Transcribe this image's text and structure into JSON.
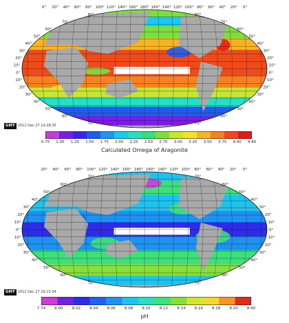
{
  "colors": {
    "land": "#a9a9a9",
    "grid": "#1a1a1a",
    "equator_band": "#ffffff",
    "ice_outline": "#e05a8c"
  },
  "panels": [
    {
      "id": "omega",
      "timestamp": "2012 Dec 27 14:28:35",
      "gmt": "GMT",
      "colorbar_label": "Calculated  Omega of Aragonite",
      "ticks": [
        "0.75",
        "1.00",
        "1.25",
        "1.50",
        "1.75",
        "2.00",
        "2.25",
        "2.50",
        "2.75",
        "3.00",
        "3.25",
        "3.50",
        "3.75",
        "4.00",
        "4.40"
      ],
      "palette": [
        "#c93cd9",
        "#7a1fe0",
        "#3b25e8",
        "#1f5cf2",
        "#1f95f5",
        "#18c9f0",
        "#26e0c4",
        "#34e07a",
        "#7be13a",
        "#c8e62c",
        "#f2e229",
        "#f7b525",
        "#f7801f",
        "#f04a1a",
        "#e01d17"
      ],
      "lon_labels": [
        "0°",
        "20°",
        "40°",
        "60°",
        "80°",
        "100°",
        "120°",
        "140°",
        "160°",
        "180°",
        "160°",
        "140°",
        "120°",
        "100°",
        "80°",
        "60°",
        "40°",
        "20°",
        "0°"
      ],
      "lat_labels": [
        "80°",
        "70°",
        "60°",
        "50°",
        "40°",
        "30°",
        "20°",
        "10°",
        "0°",
        "10°",
        "20°",
        "30°",
        "40°",
        "50°",
        "60°",
        "70°"
      ]
    },
    {
      "id": "ph",
      "timestamp": "2012 Dec 27 16:13:34",
      "gmt": "GMT",
      "colorbar_label": "pH",
      "ticks": [
        "7.74",
        "8.00",
        "8.02",
        "8.04",
        "8.06",
        "8.08",
        "8.10",
        "8.12",
        "8.14",
        "8.16",
        "8.18",
        "8.20",
        "8.40"
      ],
      "palette": [
        "#d23ad8",
        "#6f22e0",
        "#2e2ce8",
        "#2060f2",
        "#1d92f3",
        "#1bc3ee",
        "#2adfbf",
        "#3ee07c",
        "#86e03a",
        "#cfe62c",
        "#f2d829",
        "#f59525",
        "#e22a18"
      ],
      "lon_labels": [
        "20°",
        "40°",
        "60°",
        "80°",
        "100°",
        "120°",
        "140°",
        "160°",
        "180°",
        "160°",
        "140°",
        "120°",
        "100°",
        "80°",
        "60°",
        "40°",
        "20°",
        "0°"
      ],
      "lat_labels": [
        "70°",
        "60°",
        "50°",
        "40°",
        "30°",
        "20°",
        "10°",
        "0°",
        "10°",
        "20°",
        "30°",
        "40°",
        "50°",
        "60°",
        "70°"
      ]
    }
  ]
}
